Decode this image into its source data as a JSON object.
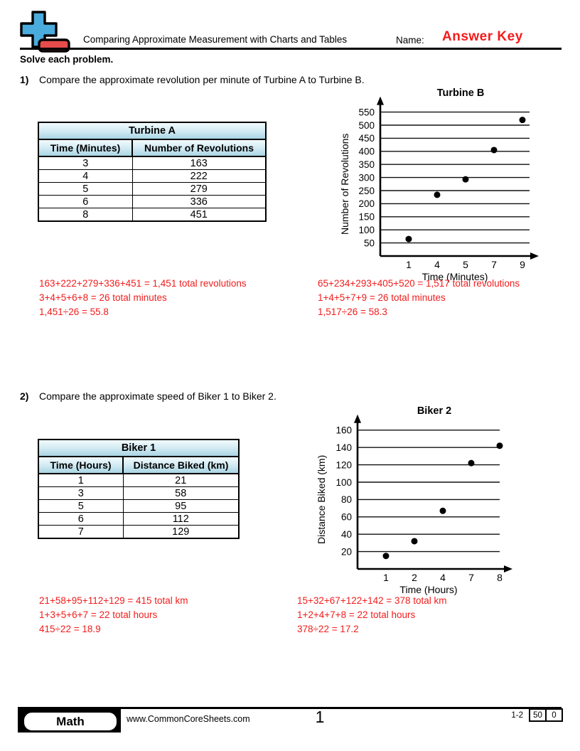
{
  "header": {
    "title": "Comparing Approximate Measurement with Charts and Tables",
    "name_label": "Name:",
    "name_value": "Answer Key"
  },
  "instructions": "Solve each problem.",
  "problems": [
    {
      "number": "1)",
      "question": "Compare the approximate revolution per minute of Turbine A to Turbine B.",
      "table": {
        "title": "Turbine A",
        "columns": [
          "Time (Minutes)",
          "Number of Revolutions"
        ],
        "rows": [
          [
            "3",
            "163"
          ],
          [
            "4",
            "222"
          ],
          [
            "5",
            "279"
          ],
          [
            "6",
            "336"
          ],
          [
            "8",
            "451"
          ]
        ]
      },
      "answers_left": [
        "163+222+279+336+451 = 1,451 total revolutions",
        "3+4+5+6+8 = 26 total minutes",
        "1,451÷26 = 55.8"
      ],
      "answers_right": [
        "65+234+293+405+520 = 1,517 total revolutions",
        "1+4+5+7+9 = 26 total minutes",
        "1,517÷26 = 58.3"
      ]
    },
    {
      "number": "2)",
      "question": "Compare the approximate speed of Biker 1 to Biker 2.",
      "table": {
        "title": "Biker 1",
        "columns": [
          "Time (Hours)",
          "Distance Biked (km)"
        ],
        "rows": [
          [
            "1",
            "21"
          ],
          [
            "3",
            "58"
          ],
          [
            "5",
            "95"
          ],
          [
            "6",
            "112"
          ],
          [
            "7",
            "129"
          ]
        ]
      },
      "answers_left": [
        "21+58+95+112+129 = 415 total km",
        "1+3+5+6+7 = 22 total hours",
        "415÷22 = 18.9"
      ],
      "answers_right": [
        "15+32+67+122+142 = 378 total km",
        "1+2+4+7+8 = 22 total hours",
        "378÷22 = 17.2"
      ]
    }
  ],
  "chart_data": [
    {
      "type": "scatter",
      "title": "Turbine B",
      "xlabel": "Time (Minutes)",
      "ylabel": "Number of Revolutions",
      "x": [
        1,
        4,
        5,
        7,
        9
      ],
      "y": [
        65,
        234,
        293,
        405,
        520
      ],
      "yticks": [
        50,
        100,
        150,
        200,
        250,
        300,
        350,
        400,
        450,
        500,
        550
      ],
      "ylim": [
        0,
        575
      ],
      "grid": true,
      "point_color": "#000000",
      "legend": "none"
    },
    {
      "type": "scatter",
      "title": "Biker 2",
      "xlabel": "Time (Hours)",
      "ylabel": "Distance Biked (km)",
      "x": [
        1,
        2,
        4,
        7,
        8
      ],
      "y": [
        15,
        32,
        67,
        122,
        142
      ],
      "yticks": [
        20,
        40,
        60,
        80,
        100,
        120,
        140,
        160
      ],
      "ylim": [
        0,
        172
      ],
      "grid": true,
      "point_color": "#000000",
      "legend": "none"
    }
  ],
  "footer": {
    "subject": "Math",
    "website": "www.CommonCoreSheets.com",
    "page_number": "1",
    "problem_range": "1-2",
    "score_total": "50",
    "score_other": "0"
  },
  "colors": {
    "accent_red": "#f31c1c",
    "table_header_top": "#f2fbfd",
    "table_header_mid": "#cfe9f2",
    "table_header_bottom": "#a9d4e3",
    "logo_blue": "#4aabdd",
    "logo_red": "#e64c4c"
  }
}
